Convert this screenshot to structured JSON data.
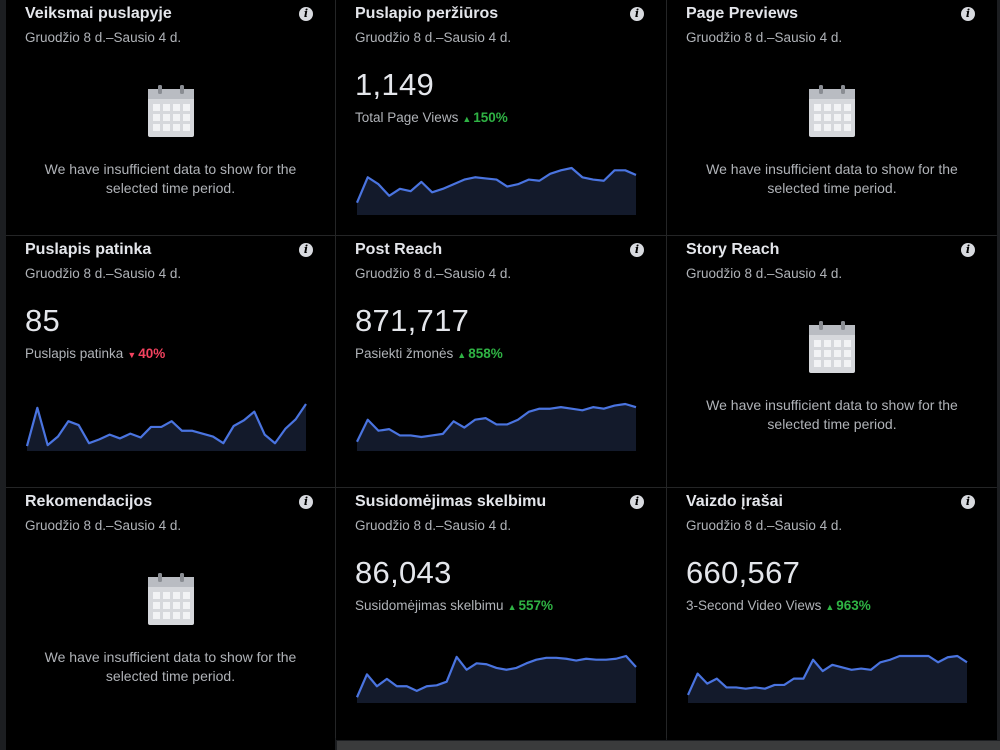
{
  "date_range": "Gruodžio 8 d.–Sausio 4 d.",
  "empty_message": "We have insufficient data to show for the selected time period.",
  "colors": {
    "accent_line": "#4a74e0",
    "up": "#2fb344",
    "down": "#f3425f"
  },
  "cards": [
    {
      "title": "Veiksmai puslapyje",
      "empty": true
    },
    {
      "title": "Puslapio peržiūros",
      "value": "1,149",
      "label": "Total Page Views",
      "change": "150%",
      "direction": "up",
      "trend": [
        8,
        30,
        24,
        14,
        20,
        18,
        26,
        17,
        20,
        24,
        28,
        30,
        29,
        28,
        22,
        24,
        28,
        27,
        33,
        36,
        38,
        30,
        28,
        27,
        36,
        36,
        32
      ]
    },
    {
      "title": "Page Previews",
      "empty": true
    },
    {
      "title": "Puslapis patinka",
      "value": "85",
      "label": "Puslapis patinka",
      "change": "40%",
      "direction": "down",
      "trend": [
        2,
        42,
        3,
        12,
        28,
        24,
        5,
        9,
        14,
        10,
        15,
        11,
        22,
        22,
        28,
        18,
        18,
        15,
        12,
        5,
        23,
        29,
        38,
        14,
        5,
        20,
        30,
        46
      ]
    },
    {
      "title": "Post Reach",
      "value": "871,717",
      "label": "Pasiekti žmonės",
      "change": "858%",
      "direction": "up",
      "trend": [
        4,
        18,
        11,
        12,
        8,
        8,
        7,
        8,
        9,
        17,
        13,
        18,
        19,
        15,
        15,
        18,
        23,
        25,
        25,
        26,
        25,
        24,
        26,
        25,
        27,
        28,
        26
      ]
    },
    {
      "title": "Story Reach",
      "empty": true
    },
    {
      "title": "Rekomendacijos",
      "empty": true
    },
    {
      "title": "Susidomėjimas skelbimu",
      "value": "86,043",
      "label": "Susidomėjimas skelbimu",
      "change": "557%",
      "direction": "up",
      "trend": [
        3,
        28,
        15,
        23,
        15,
        15,
        10,
        15,
        16,
        20,
        47,
        33,
        40,
        39,
        35,
        33,
        35,
        40,
        44,
        46,
        46,
        45,
        43,
        45,
        44,
        44,
        45,
        48,
        36
      ]
    },
    {
      "title": "Vaizdo įrašai",
      "value": "660,567",
      "label": "3-Second Video Views",
      "change": "963%",
      "direction": "up",
      "trend": [
        4,
        21,
        13,
        17,
        10,
        10,
        9,
        10,
        9,
        12,
        12,
        17,
        17,
        32,
        23,
        28,
        26,
        24,
        25,
        24,
        30,
        32,
        35,
        35,
        35,
        35,
        30,
        34,
        35,
        30
      ]
    }
  ]
}
